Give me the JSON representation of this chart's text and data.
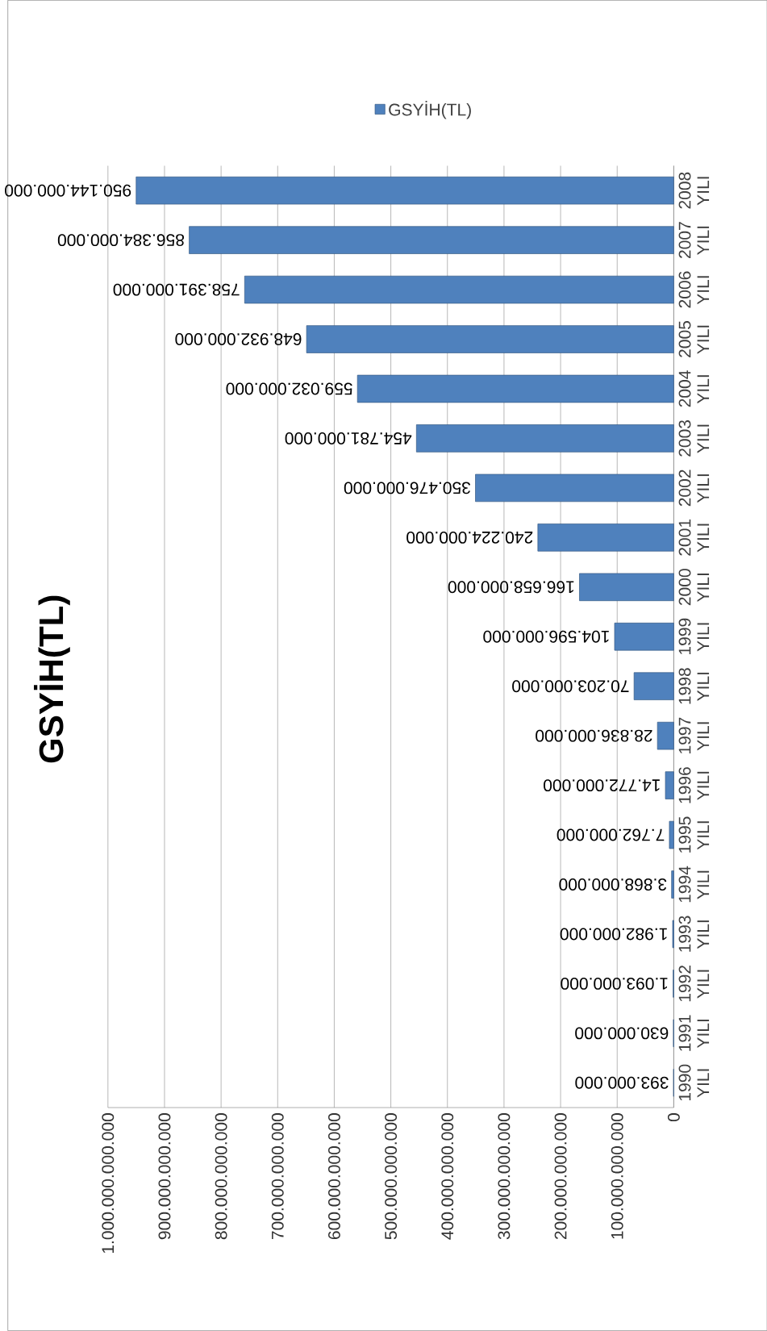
{
  "chart_data": {
    "type": "bar",
    "orientation": "horizontal",
    "title": "GSYİH(TL)",
    "categories": [
      "2008 YILI",
      "2007 YILI",
      "2006 YILI",
      "2005 YILI",
      "2004 YILI",
      "2003 YILI",
      "2002 YILI",
      "2001 YILI",
      "2000 YILI",
      "1999 YILI",
      "1998 YILI",
      "1997 YILI",
      "1996 YILI",
      "1995 YILI",
      "1994 YILI",
      "1993 YILI",
      "1992 YILI",
      "1991 YILI",
      "1990 YILI"
    ],
    "series": [
      {
        "name": "GSYİH(TL)",
        "color": "#4f81bd",
        "values": [
          950144000000,
          856384000000,
          758391000000,
          648932000000,
          559032000000,
          454781000000,
          350476000000,
          240224000000,
          166658000000,
          104596000000,
          70203000000,
          28836000000,
          14772000000,
          7762000000,
          3868000000,
          1982000000,
          1093000000,
          630000000,
          393000000
        ],
        "value_labels": [
          "950.144.000.000",
          "856.384.000.000",
          "758.391.000.000",
          "648.932.000.000",
          "559.032.000.000",
          "454.781.000.000",
          "350.476.000.000",
          "240.224.000.000",
          "166.658.000.000",
          "104.596.000.000",
          "70.203.000.000",
          "28.836.000.000",
          "14.772.000.000",
          "7.762.000.000",
          "3.868.000.000",
          "1.982.000.000",
          "1.093.000.000",
          "630.000.000",
          "393.000.000"
        ]
      }
    ],
    "xlim": [
      1000000000000,
      0
    ],
    "xticks": [
      0,
      {
        "value": 100000000000,
        "label": "100.000.000.000"
      },
      {
        "value": 200000000000,
        "label": "200.000.000.000"
      },
      {
        "value": 300000000000,
        "label": "300.000.000.000"
      },
      {
        "value": 400000000000,
        "label": "400.000.000.000"
      },
      {
        "value": 500000000000,
        "label": "500.000.000.000"
      },
      {
        "value": 600000000000,
        "label": "600.000.000.000"
      },
      {
        "value": 700000000000,
        "label": "700.000.000.000"
      },
      {
        "value": 800000000000,
        "label": "800.000.000.000"
      },
      {
        "value": 900000000000,
        "label": "900.000.000.000"
      },
      {
        "value": 1000000000000,
        "label": "1.000.000.000.000"
      }
    ],
    "grid": "x",
    "legend": "top"
  }
}
